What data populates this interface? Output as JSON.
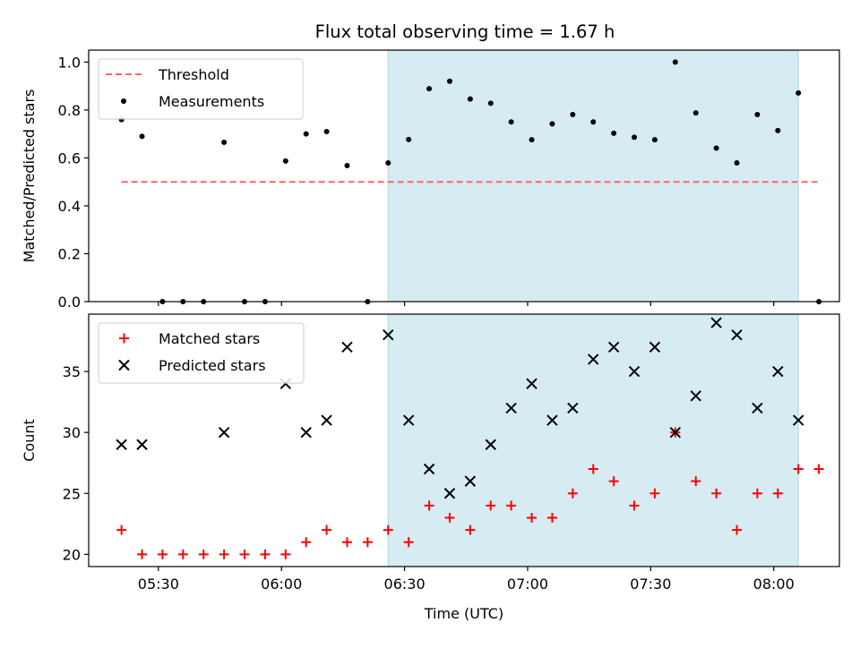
{
  "chart_data": [
    {
      "type": "scatter",
      "title": "Flux total observing time = 1.67 h",
      "ylabel": "Matched/Predicted stars",
      "ylim": [
        0,
        1.05
      ],
      "yticks": [
        {
          "value": 0.0,
          "label": "0.0"
        },
        {
          "value": 0.2,
          "label": "0.2"
        },
        {
          "value": 0.4,
          "label": "0.4"
        },
        {
          "value": 0.6,
          "label": "0.6"
        },
        {
          "value": 0.8,
          "label": "0.8"
        },
        {
          "value": 1.0,
          "label": "1.0"
        }
      ],
      "shaded_region": {
        "x_start": "06:26",
        "x_end": "08:06",
        "color": "#add8e6"
      },
      "legend": {
        "placement": "upper left",
        "entries": [
          "Threshold",
          "Measurements"
        ]
      },
      "threshold": {
        "name": "Threshold",
        "y": 0.5,
        "x_start": "05:21",
        "x_end": "08:11",
        "color": "#ff6666",
        "style": "dashed"
      },
      "series": [
        {
          "name": "Measurements",
          "color": "#000000",
          "x": [
            "05:21",
            "05:26",
            "05:31",
            "05:36",
            "05:41",
            "05:46",
            "05:51",
            "05:56",
            "06:01",
            "06:06",
            "06:11",
            "06:16",
            "06:21",
            "06:26",
            "06:31",
            "06:36",
            "06:41",
            "06:46",
            "06:51",
            "06:56",
            "07:01",
            "07:06",
            "07:11",
            "07:16",
            "07:21",
            "07:26",
            "07:31",
            "07:36",
            "07:41",
            "07:46",
            "07:51",
            "07:56",
            "08:01",
            "08:06",
            "08:11"
          ],
          "y": [
            0.76,
            0.69,
            0.0,
            0.0,
            0.0,
            0.665,
            0.0,
            0.0,
            0.587,
            0.7,
            0.71,
            0.568,
            0.0,
            0.579,
            0.677,
            0.889,
            0.92,
            0.846,
            0.828,
            0.75,
            0.676,
            0.742,
            0.781,
            0.75,
            0.703,
            0.686,
            0.676,
            1.0,
            0.788,
            0.641,
            0.579,
            0.781,
            0.714,
            0.871,
            0.0
          ]
        }
      ]
    },
    {
      "type": "scatter",
      "xlabel": "Time (UTC)",
      "ylabel": "Count",
      "ylim": [
        19,
        39.7
      ],
      "yticks": [
        {
          "value": 20,
          "label": "20"
        },
        {
          "value": 25,
          "label": "25"
        },
        {
          "value": 30,
          "label": "30"
        },
        {
          "value": 35,
          "label": "35"
        }
      ],
      "xticks": [
        {
          "value": "05:30",
          "label": "05:30"
        },
        {
          "value": "06:00",
          "label": "06:00"
        },
        {
          "value": "06:30",
          "label": "06:30"
        },
        {
          "value": "07:00",
          "label": "07:00"
        },
        {
          "value": "07:30",
          "label": "07:30"
        },
        {
          "value": "08:00",
          "label": "08:00"
        }
      ],
      "xlim": [
        "05:13",
        "08:16"
      ],
      "shaded_region": {
        "x_start": "06:26",
        "x_end": "08:06",
        "color": "#add8e6"
      },
      "legend": {
        "placement": "upper left",
        "entries": [
          "Matched stars",
          "Predicted stars"
        ]
      },
      "series": [
        {
          "name": "Matched stars",
          "marker": "plus",
          "color": "#ff0000",
          "x": [
            "05:21",
            "05:26",
            "05:31",
            "05:36",
            "05:41",
            "05:46",
            "05:51",
            "05:56",
            "06:01",
            "06:06",
            "06:11",
            "06:16",
            "06:21",
            "06:26",
            "06:31",
            "06:36",
            "06:41",
            "06:46",
            "06:51",
            "06:56",
            "07:01",
            "07:06",
            "07:11",
            "07:16",
            "07:21",
            "07:26",
            "07:31",
            "07:36",
            "07:41",
            "07:46",
            "07:51",
            "07:56",
            "08:01",
            "08:06",
            "08:11"
          ],
          "y": [
            22,
            20,
            20,
            20,
            20,
            20,
            20,
            20,
            20,
            21,
            22,
            21,
            21,
            22,
            21,
            24,
            23,
            22,
            24,
            24,
            23,
            23,
            25,
            27,
            26,
            24,
            25,
            30,
            26,
            25,
            22,
            25,
            25,
            27,
            27
          ]
        },
        {
          "name": "Predicted stars",
          "marker": "x",
          "color": "#000000",
          "x": [
            "05:21",
            "05:26",
            "05:46",
            "06:01",
            "06:06",
            "06:11",
            "06:16",
            "06:26",
            "06:31",
            "06:36",
            "06:41",
            "06:46",
            "06:51",
            "06:56",
            "07:01",
            "07:06",
            "07:11",
            "07:16",
            "07:21",
            "07:26",
            "07:31",
            "07:36",
            "07:41",
            "07:46",
            "07:51",
            "07:56",
            "08:01",
            "08:06"
          ],
          "y": [
            29,
            29,
            30,
            34,
            30,
            31,
            37,
            38,
            31,
            27,
            25,
            26,
            29,
            32,
            34,
            31,
            32,
            36,
            37,
            35,
            37,
            30,
            33,
            39,
            38,
            32,
            35,
            31
          ]
        }
      ]
    }
  ]
}
